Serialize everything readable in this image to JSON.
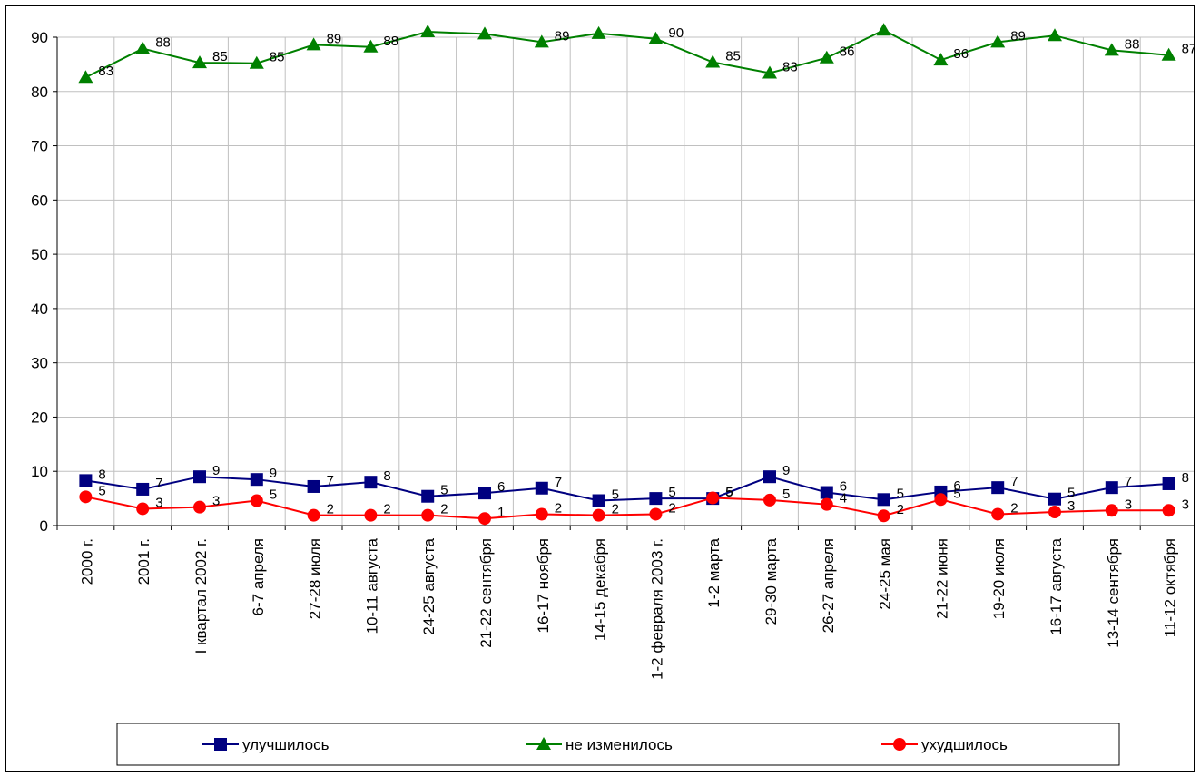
{
  "chart_data": {
    "type": "line",
    "title": "",
    "xlabel": "",
    "ylabel": "",
    "ylim": [
      0,
      90
    ],
    "yticks": [
      0,
      10,
      20,
      30,
      40,
      50,
      60,
      70,
      80,
      90
    ],
    "grid": "vertical lines at categories, horizontal at y ticks",
    "legend_position": "bottom",
    "categories": [
      "2000 г.",
      "2001 г.",
      "I квартал 2002 г.",
      "6-7 апреля",
      "27-28 июля",
      "10-11 августа",
      "24-25 августа",
      "21-22 сентября",
      "16-17 ноября",
      "14-15 декабря",
      "1-2 февраля 2003 г.",
      "1-2 марта",
      "29-30 марта",
      "26-27 апреля",
      "24-25 мая",
      "21-22 июня",
      "19-20 июля",
      "16-17 августа",
      "13-14 сентября",
      "11-12 октября"
    ],
    "series": [
      {
        "name": "улучшилось",
        "color": "#000080",
        "marker": "square",
        "values": [
          8.3,
          6.7,
          9.0,
          8.5,
          7.2,
          8.0,
          5.4,
          6.0,
          6.9,
          4.6,
          5.0,
          5.0,
          9.0,
          6.1,
          4.8,
          6.2,
          7.0,
          4.9,
          7.0,
          7.7
        ],
        "labels": [
          "8",
          "7",
          "9",
          "9",
          "7",
          "8",
          "5",
          "6",
          "7",
          "5",
          "5",
          "5",
          "9",
          "6",
          "5",
          "6",
          "7",
          "5",
          "7",
          "8"
        ]
      },
      {
        "name": "не изменилось",
        "color": "#008000",
        "marker": "triangle",
        "values": [
          82.6,
          87.9,
          85.3,
          85.2,
          88.6,
          88.2,
          91.0,
          90.6,
          89.1,
          90.7,
          89.7,
          85.4,
          83.4,
          86.2,
          91.3,
          85.8,
          89.1,
          90.3,
          87.6,
          86.7
        ],
        "labels": [
          "83",
          "88",
          "85",
          "85",
          "89",
          "88",
          "",
          "",
          "89",
          "",
          "90",
          "85",
          "83",
          "86",
          "",
          "86",
          "89",
          "",
          "88",
          "87"
        ]
      },
      {
        "name": "ухудшилось",
        "color": "#ff0000",
        "marker": "circle",
        "values": [
          5.3,
          3.1,
          3.4,
          4.6,
          1.9,
          1.9,
          1.9,
          1.3,
          2.1,
          1.9,
          2.1,
          5.1,
          4.7,
          3.9,
          1.8,
          4.8,
          2.1,
          2.5,
          2.8,
          2.8
        ],
        "labels": [
          "5",
          "3",
          "3",
          "5",
          "2",
          "2",
          "2",
          "1",
          "2",
          "2",
          "2",
          "5",
          "5",
          "4",
          "2",
          "5",
          "2",
          "3",
          "3",
          "3"
        ]
      }
    ]
  }
}
